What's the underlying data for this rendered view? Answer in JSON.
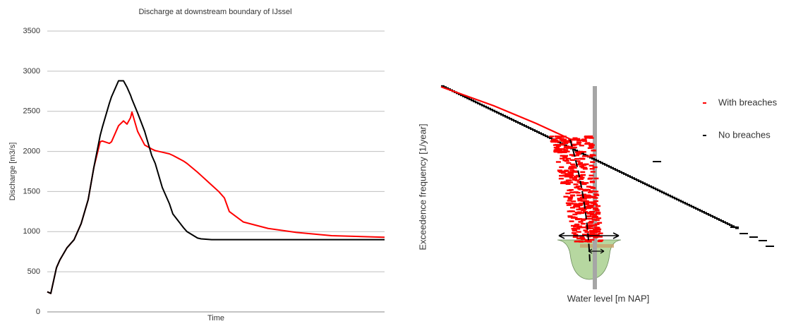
{
  "chart_data": [
    {
      "type": "line",
      "title": "Discharge at downstream  boundary of IJssel",
      "x_label": "Time",
      "y_label": "Discharge [m3/s]",
      "x": [
        0,
        5,
        13,
        18,
        28,
        38,
        48,
        58,
        66,
        75,
        78,
        88,
        91,
        101,
        108,
        113,
        118,
        120,
        128,
        138,
        148,
        153,
        163,
        173,
        178,
        193,
        198,
        213,
        218,
        233,
        243,
        251,
        258,
        278,
        313,
        353,
        403,
        478
      ],
      "xlim": [
        0,
        478
      ],
      "ylim": [
        0,
        3500
      ],
      "yticks": [
        0,
        500,
        1000,
        1500,
        2000,
        2500,
        3000,
        3500
      ],
      "grid": true,
      "series": [
        {
          "color": "#000000",
          "values": [
            250,
            230,
            550,
            650,
            800,
            900,
            1100,
            1400,
            1800,
            2200,
            2300,
            2600,
            2680,
            2880,
            2880,
            2800,
            2700,
            2650,
            2480,
            2250,
            1950,
            1850,
            1550,
            1350,
            1220,
            1050,
            1000,
            920,
            910,
            900,
            900,
            900,
            900,
            900,
            900,
            900,
            900,
            900
          ]
        },
        {
          "color": "#ff0000",
          "values": [
            250,
            230,
            550,
            650,
            800,
            900,
            1100,
            1400,
            1800,
            2120,
            2130,
            2100,
            2120,
            2320,
            2380,
            2340,
            2420,
            2490,
            2250,
            2080,
            2030,
            2010,
            1990,
            1970,
            1950,
            1880,
            1850,
            1740,
            1700,
            1580,
            1500,
            1420,
            1250,
            1120,
            1040,
            990,
            950,
            930
          ]
        }
      ]
    },
    {
      "type": "schematic",
      "x_label": "Water level  [m NAP]",
      "y_label": "Exceedence frequency  [1/year]",
      "series": [
        {
          "name": "With breaches",
          "color": "#ff0000"
        },
        {
          "name": "No breaches",
          "color": "#000000"
        }
      ]
    }
  ]
}
